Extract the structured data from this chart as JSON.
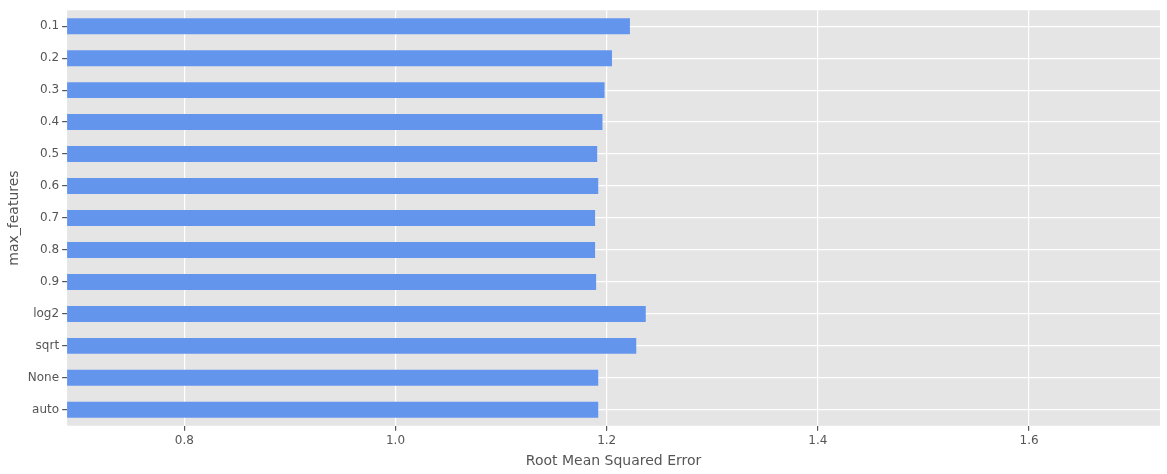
{
  "chart_data": {
    "type": "bar",
    "orientation": "horizontal",
    "xlabel": "Root Mean Squared Error",
    "ylabel": "max_features",
    "categories": [
      "0.1",
      "0.2",
      "0.3",
      "0.4",
      "0.5",
      "0.6",
      "0.7",
      "0.8",
      "0.9",
      "log2",
      "sqrt",
      "None",
      "auto"
    ],
    "values": [
      1.222,
      1.205,
      1.198,
      1.196,
      1.191,
      1.192,
      1.189,
      1.189,
      1.19,
      1.237,
      1.228,
      1.192,
      1.192
    ],
    "color": "#6495ed",
    "xlim": [
      0.689,
      1.724
    ],
    "xticks": [
      0.8,
      {
        "value": 1,
        "label": "1.0"
      },
      1.2,
      1.4,
      1.6
    ],
    "grid": true,
    "legend": false
  }
}
